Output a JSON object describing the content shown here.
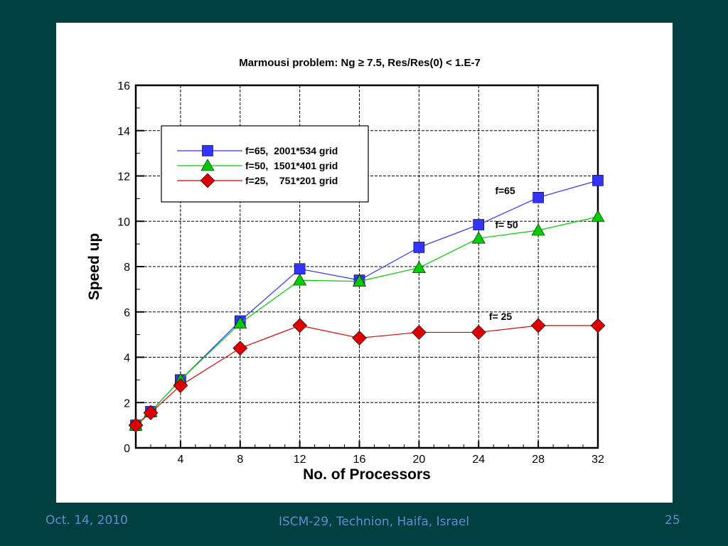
{
  "footer": {
    "date": "Oct. 14, 2010",
    "venue": "ISCM-29, Technion, Haifa, Israel",
    "page": "25"
  },
  "chart_data": {
    "type": "line",
    "title": "Marmousi problem:  Ng ≥ 7.5,  Res/Res(0) < 1.E-7",
    "xlabel": "No. of Processors",
    "ylabel": "Speed up",
    "xlim": [
      1,
      32
    ],
    "ylim": [
      0,
      16
    ],
    "xticks": [
      4,
      8,
      12,
      16,
      20,
      24,
      28,
      32
    ],
    "yticks": [
      0,
      2,
      4,
      6,
      8,
      10,
      12,
      14,
      16
    ],
    "grid": true,
    "legend_position": "top-left",
    "series": [
      {
        "name": "f=65,  2001*534 grid",
        "color": "#3333ff",
        "marker": "square",
        "x": [
          1,
          2,
          4,
          8,
          12,
          16,
          20,
          24,
          28,
          32
        ],
        "y": [
          1,
          1.6,
          3.0,
          5.6,
          7.9,
          7.4,
          8.85,
          9.85,
          11.05,
          11.8
        ]
      },
      {
        "name": "f=50,  1501*401 grid",
        "color": "#00cc00",
        "marker": "triangle",
        "x": [
          1,
          2,
          4,
          8,
          12,
          16,
          20,
          24,
          28,
          32
        ],
        "y": [
          1,
          1.6,
          3.0,
          5.5,
          7.4,
          7.35,
          7.95,
          9.25,
          9.6,
          10.2
        ]
      },
      {
        "name": "f=25,    751*201 grid",
        "color": "#dd0000",
        "marker": "diamond",
        "x": [
          1,
          2,
          4,
          8,
          12,
          16,
          20,
          24,
          28,
          32
        ],
        "y": [
          1,
          1.55,
          2.75,
          4.4,
          5.4,
          4.85,
          5.1,
          5.1,
          5.4,
          5.4
        ]
      }
    ],
    "annotations": [
      {
        "text": "f=65",
        "x": 25.1,
        "y": 11.2
      },
      {
        "text": "f= 50",
        "x": 25.1,
        "y": 9.7
      },
      {
        "text": "f= 25",
        "x": 24.7,
        "y": 5.65
      }
    ]
  }
}
